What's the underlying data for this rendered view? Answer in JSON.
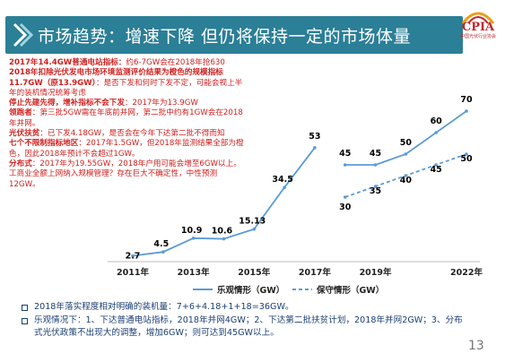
{
  "header": {
    "title": "市场趋势：增速下降 但仍将保持一定的市场体量"
  },
  "logo": {
    "text": "CPIA",
    "subtitle": "中国光伏行业协会"
  },
  "notes": [
    {
      "parts": [
        {
          "t": "2017年14.4GW普通电站指标：",
          "b": true
        },
        {
          "t": "约6-7GW会在2018年抢630",
          "b": false
        }
      ]
    },
    {
      "parts": [
        {
          "t": "2018年扣除光伏发电市场环境监测评价结果为橙色的规模指标11.7GW（原13.9GW）",
          "b": true
        },
        {
          "t": "：是否下发和何时下发不定，可能会视上半年的装机情况统筹考虑",
          "b": false
        }
      ]
    },
    {
      "parts": [
        {
          "t": "停止先建先得，增补指标不会下发",
          "b": true
        },
        {
          "t": "：2017年为13.9GW",
          "b": false
        }
      ]
    },
    {
      "parts": [
        {
          "t": "领跑者",
          "b": true
        },
        {
          "t": "：第三批5GW需在年底前并网，第二批中约有1GW会在2018年并网。",
          "b": false
        }
      ]
    },
    {
      "parts": [
        {
          "t": "光伏扶贫",
          "b": true
        },
        {
          "t": "：已下发4.18GW，是否会在今年下达第二批不得而知",
          "b": false
        }
      ]
    },
    {
      "parts": [
        {
          "t": "七个不限制指标地区",
          "b": true
        },
        {
          "t": "：2017年1.5GW，但2018年监测结果全部为橙色，因此2018年预计不会超过1GW。",
          "b": false
        }
      ]
    },
    {
      "parts": [
        {
          "t": "分布式",
          "b": true
        },
        {
          "t": "：2017年为19.55GW，2018年户用可能会增至6GW以上。工商业全额上网纳入规模管理？存在巨大不确定性，中性预测12GW。",
          "b": false
        }
      ]
    }
  ],
  "chart_data": {
    "type": "line",
    "x_tick_labels": [
      "2011年",
      "2013年",
      "2015年",
      "2017年",
      "2019年",
      "2022年"
    ],
    "x_tick_years": [
      2011,
      2013,
      2015,
      2017,
      2019,
      2022
    ],
    "ylim": [
      0,
      80
    ],
    "grid": false,
    "legend_position": "bottom",
    "historical": {
      "x": [
        2011,
        2012,
        2013,
        2014,
        2015,
        2016,
        2017
      ],
      "values": [
        2.7,
        4.5,
        10.9,
        10.6,
        15.13,
        34.5,
        53
      ],
      "labels": [
        "2.7",
        "4.5",
        "10.9",
        "10.6",
        "15.13",
        "34.5",
        "53"
      ]
    },
    "series": [
      {
        "name": "乐观情形（GW）",
        "style": "solid",
        "x": [
          2018,
          2019,
          2020,
          2021,
          2022
        ],
        "values": [
          45,
          45,
          50,
          60,
          70
        ],
        "labels": [
          "45",
          "45",
          "50",
          "60",
          "70"
        ]
      },
      {
        "name": "保守情形（GW）",
        "style": "dashed",
        "x": [
          2018,
          2019,
          2020,
          2021,
          2022
        ],
        "values": [
          30,
          35,
          40,
          45,
          50
        ],
        "labels": [
          "30",
          "35",
          "40",
          "45",
          "50"
        ]
      }
    ],
    "colors": {
      "line": "#5b9bd5",
      "label": "#000000",
      "axis": "#bfbfbf"
    }
  },
  "legend": {
    "optimistic": "乐观情形（GW）",
    "conservative": "保守情形（GW）"
  },
  "bullets": [
    "2018年落实程度相对明确的装机量：7+6+4.18+1+18=36GW。",
    "乐观情况下：1、下达普通电站指标，2018年并网4GW；2、下达第二批扶贫计划，2018年并网2GW；3、分布式光伏政策不出现大的调整，增加6GW；则可达到45GW以上。"
  ],
  "page_number": "13"
}
